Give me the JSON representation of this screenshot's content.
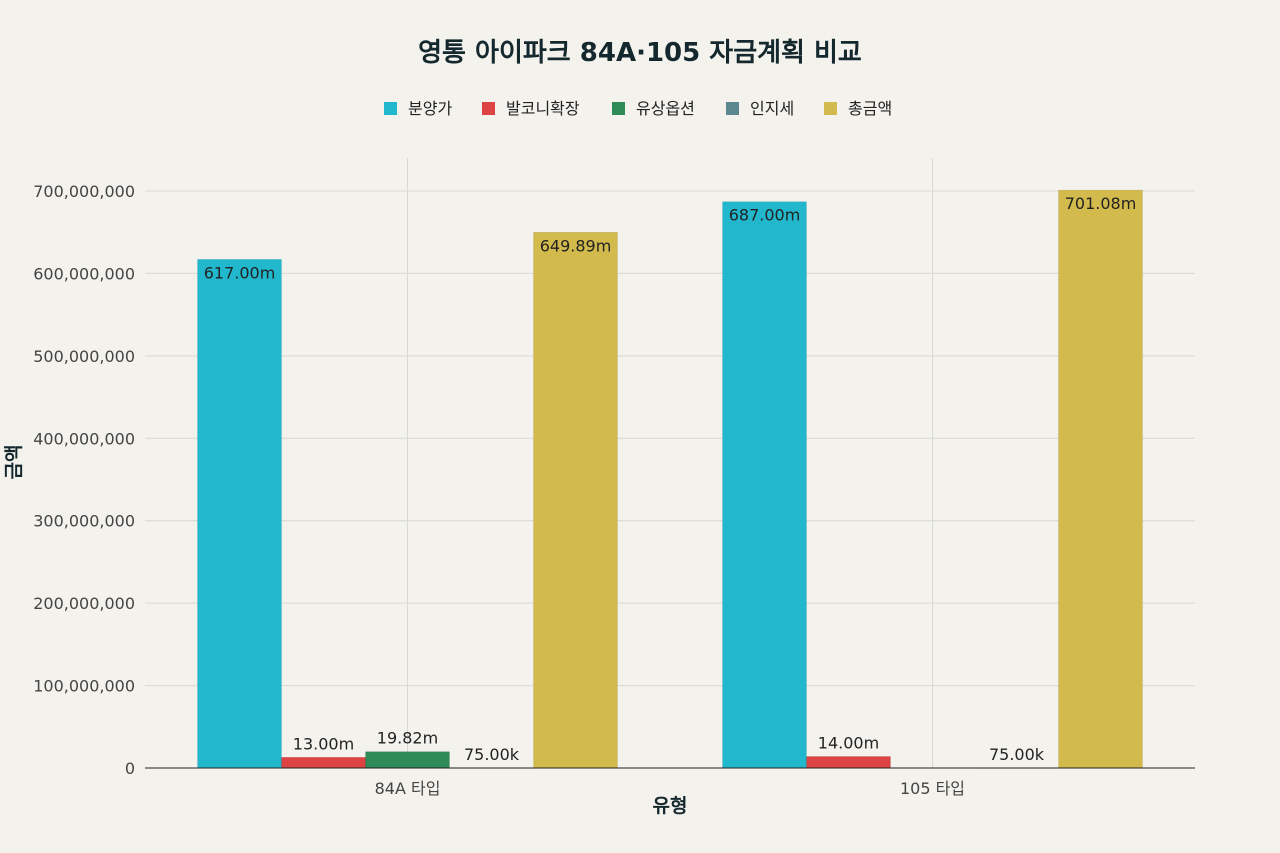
{
  "chart_data": {
    "type": "bar",
    "title": "영통 아이파크 84A·105 자금계획 비교",
    "xlabel": "유형",
    "ylabel": "금액",
    "categories": [
      "84A 타입",
      "105 타입"
    ],
    "series": [
      {
        "name": "분양가",
        "color": "#21b8cd",
        "values": [
          617000000,
          687000000
        ],
        "labels": [
          "617.00m",
          "687.00m"
        ]
      },
      {
        "name": "발코니확장",
        "color": "#de4343",
        "values": [
          13000000,
          14000000
        ],
        "labels": [
          "13.00m",
          "14.00m"
        ]
      },
      {
        "name": "유상옵션",
        "color": "#2e8b57",
        "values": [
          19820000,
          null
        ],
        "labels": [
          "19.82m",
          ""
        ]
      },
      {
        "name": "인지세",
        "color": "#5d878f",
        "values": [
          75000,
          75000
        ],
        "labels": [
          "75.00k",
          "75.00k"
        ]
      },
      {
        "name": "총금액",
        "color": "#d2ba4c",
        "values": [
          649890000,
          701080000
        ],
        "labels": [
          "649.89m",
          "701.08m"
        ]
      }
    ],
    "ylim": [
      0,
      740000000
    ],
    "yticks": [
      0,
      100000000,
      200000000,
      300000000,
      400000000,
      500000000,
      600000000,
      700000000
    ],
    "ytick_labels": [
      "0",
      "100,000,000",
      "200,000,000",
      "300,000,000",
      "400,000,000",
      "500,000,000",
      "600,000,000",
      "700,000,000"
    ],
    "grid": true,
    "legend_position": "top-center"
  }
}
